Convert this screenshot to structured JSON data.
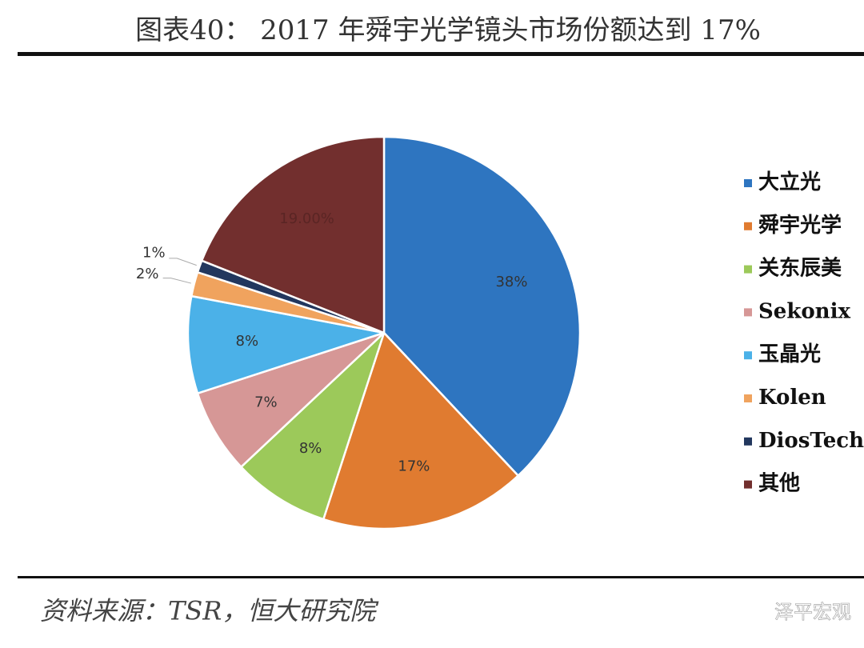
{
  "chart_data": {
    "type": "pie",
    "title": "图表40： 2017 年舜宇光学镜头市场份额达到 17%",
    "categories": [
      "大立光",
      "舜宇光学",
      "关东辰美",
      "Sekonix",
      "玉晶光",
      "Kolen",
      "DiosTech",
      "其他"
    ],
    "values": [
      38,
      17,
      8,
      7,
      8,
      2,
      1,
      19
    ],
    "value_labels": [
      "38%",
      "17%",
      "8%",
      "7%",
      "8%",
      "2%",
      "1%",
      "19.00%"
    ],
    "colors": [
      "#2e75c0",
      "#e07b30",
      "#9cc95a",
      "#d69796",
      "#4bb1e8",
      "#f0a35e",
      "#22375e",
      "#722f2e"
    ],
    "legend": "right",
    "source": "资料来源：TSR，恒大研究院",
    "watermark": "泽平宏观"
  }
}
